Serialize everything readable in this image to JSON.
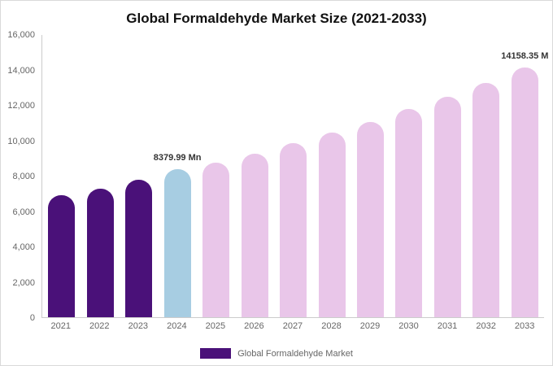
{
  "title": "Global Formaldehyde Market Size (2021-2033)",
  "legend": {
    "label": "Global Formaldehyde Market",
    "swatch_color": "#4a1179"
  },
  "y_axis": {
    "ticks": [
      "0",
      "2,000",
      "4,000",
      "6,000",
      "8,000",
      "10,000",
      "12,000",
      "14,000",
      "16,000"
    ]
  },
  "chart_data": {
    "type": "bar",
    "title": "Global Formaldehyde Market Size (2021-2033)",
    "categories": [
      "2021",
      "2022",
      "2023",
      "2024",
      "2025",
      "2026",
      "2027",
      "2028",
      "2029",
      "2030",
      "2031",
      "2032",
      "2033"
    ],
    "values": [
      6900,
      7300,
      7800,
      8379.99,
      8750,
      9250,
      9850,
      10450,
      11050,
      11800,
      12500,
      13300,
      14158.35
    ],
    "bar_colors": [
      "#4a1179",
      "#4a1179",
      "#4a1179",
      "#a7cde2",
      "#e9c6e9",
      "#e9c6e9",
      "#e9c6e9",
      "#e9c6e9",
      "#e9c6e9",
      "#e9c6e9",
      "#e9c6e9",
      "#e9c6e9",
      "#e9c6e9"
    ],
    "annotations": [
      {
        "category": "2024",
        "text": "8379.99 Mn"
      },
      {
        "category": "2033",
        "text": "14158.35 M"
      }
    ],
    "xlabel": "",
    "ylabel": "",
    "ylim": [
      0,
      16000
    ],
    "grid": false,
    "legend_position": "bottom"
  }
}
